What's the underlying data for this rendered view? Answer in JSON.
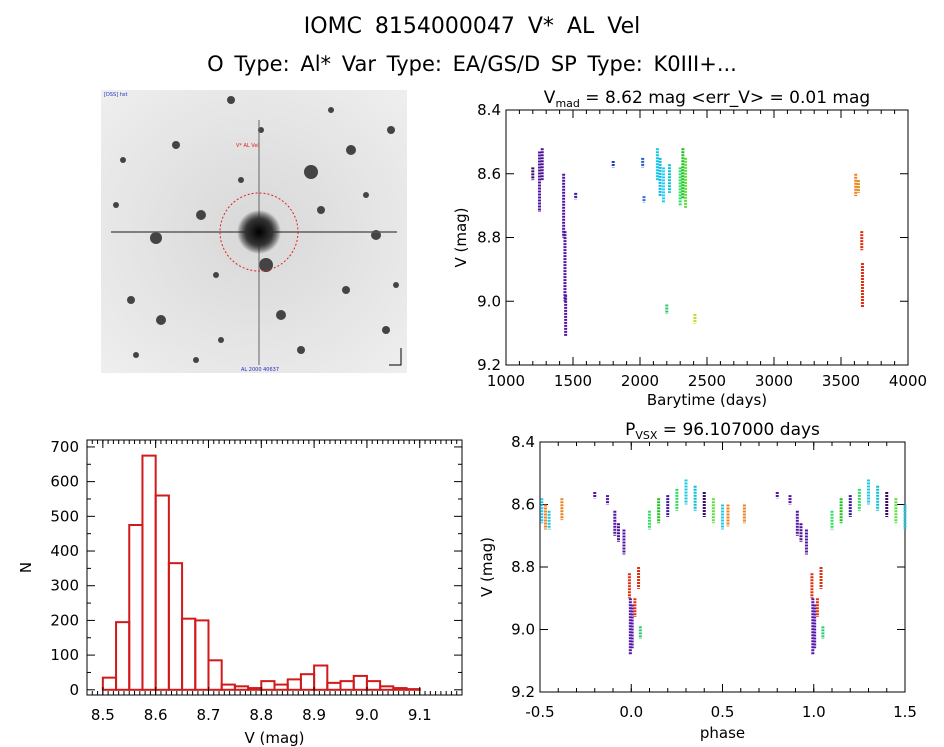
{
  "header": {
    "title_line1": "IOMC 8154000047    V* AL Vel",
    "title_line2": "O Type: Al*  Var Type: EA/GS/D  SP Type: K0III+..."
  },
  "image_panel": {
    "top_left_label": "[DSS] hst",
    "target_label": "V* AL Vel",
    "bottom_label": "AL 2000 40637"
  },
  "chart_data": [
    {
      "type": "scatter",
      "title": "V_mad = 8.62 mag <err_V> = 0.01 mag",
      "title_parts": {
        "v": "V",
        "sub": "mad",
        "rest": " = 8.62 mag <err_V> = 0.01 mag"
      },
      "xlabel": "Barytime (days)",
      "ylabel": "V (mag)",
      "xlim": [
        1000,
        4000
      ],
      "ylim": [
        9.2,
        8.4
      ],
      "x_ticks": [
        1000,
        1500,
        2000,
        2500,
        3000,
        3500,
        4000
      ],
      "y_ticks": [
        "8.4",
        "8.6",
        "8.8",
        "9.0",
        "9.2"
      ],
      "segments": [
        {
          "x": 1200,
          "y_from": 8.58,
          "y_to": 8.62,
          "color": "#3a0c63"
        },
        {
          "x": 1250,
          "y_from": 8.53,
          "y_to": 8.72,
          "color": "#5010a0"
        },
        {
          "x": 1270,
          "y_from": 8.52,
          "y_to": 8.62,
          "color": "#4a1090"
        },
        {
          "x": 1430,
          "y_from": 8.6,
          "y_to": 8.8,
          "color": "#5514a8"
        },
        {
          "x": 1440,
          "y_from": 8.78,
          "y_to": 9.0,
          "color": "#5514a8"
        },
        {
          "x": 1445,
          "y_from": 8.98,
          "y_to": 9.11,
          "color": "#5514a8"
        },
        {
          "x": 1520,
          "y_from": 8.66,
          "y_to": 8.68,
          "color": "#3a1a9f"
        },
        {
          "x": 1800,
          "y_from": 8.56,
          "y_to": 8.58,
          "color": "#2040c0"
        },
        {
          "x": 2020,
          "y_from": 8.55,
          "y_to": 8.58,
          "color": "#2060d0"
        },
        {
          "x": 2030,
          "y_from": 8.67,
          "y_to": 8.69,
          "color": "#3070e0"
        },
        {
          "x": 2130,
          "y_from": 8.52,
          "y_to": 8.62,
          "color": "#10c8e0"
        },
        {
          "x": 2150,
          "y_from": 8.55,
          "y_to": 8.67,
          "color": "#10b8f0"
        },
        {
          "x": 2175,
          "y_from": 8.58,
          "y_to": 8.69,
          "color": "#20d0f0"
        },
        {
          "x": 2200,
          "y_from": 9.01,
          "y_to": 9.04,
          "color": "#30c870"
        },
        {
          "x": 2220,
          "y_from": 8.57,
          "y_to": 8.66,
          "color": "#10c0d0"
        },
        {
          "x": 2300,
          "y_from": 8.58,
          "y_to": 8.7,
          "color": "#30e060"
        },
        {
          "x": 2320,
          "y_from": 8.52,
          "y_to": 8.68,
          "color": "#20c020"
        },
        {
          "x": 2340,
          "y_from": 8.55,
          "y_to": 8.71,
          "color": "#60e040"
        },
        {
          "x": 2410,
          "y_from": 9.04,
          "y_to": 9.07,
          "color": "#c0e020"
        },
        {
          "x": 3610,
          "y_from": 8.6,
          "y_to": 8.67,
          "color": "#f08020"
        },
        {
          "x": 3630,
          "y_from": 8.62,
          "y_to": 8.66,
          "color": "#e09010"
        },
        {
          "x": 3655,
          "y_from": 8.78,
          "y_to": 8.84,
          "color": "#e03010"
        },
        {
          "x": 3660,
          "y_from": 8.88,
          "y_to": 9.02,
          "color": "#e03010"
        }
      ]
    },
    {
      "type": "bar",
      "title": "",
      "xlabel": "V (mag)",
      "ylabel": "N",
      "xlim": [
        8.47,
        9.18
      ],
      "ylim": [
        -15,
        720
      ],
      "x_ticks": [
        "8.5",
        "8.6",
        "8.7",
        "8.8",
        "8.9",
        "9.0",
        "9.1"
      ],
      "y_ticks": [
        "0",
        "100",
        "200",
        "300",
        "400",
        "500",
        "600",
        "700"
      ],
      "bin_width": 0.025,
      "bin_start": 8.5,
      "values": [
        35,
        195,
        475,
        675,
        560,
        365,
        205,
        200,
        85,
        15,
        10,
        5,
        25,
        15,
        30,
        45,
        70,
        20,
        25,
        40,
        25,
        10,
        5,
        2
      ]
    },
    {
      "type": "scatter",
      "title": "P_VSX = 96.107000 days",
      "title_parts": {
        "v": "P",
        "sub": "VSX",
        "rest": " = 96.107000 days"
      },
      "xlabel": "phase",
      "ylabel": "V (mag)",
      "xlim": [
        -0.5,
        1.5
      ],
      "ylim": [
        9.2,
        8.4
      ],
      "x_ticks": [
        "-0.5",
        "0.0",
        "0.5",
        "1.0",
        "1.5"
      ],
      "y_ticks": [
        "8.4",
        "8.6",
        "8.8",
        "9.0",
        "9.2"
      ],
      "segments": [
        {
          "x": -0.49,
          "y_from": 8.58,
          "y_to": 8.66,
          "color": "#30c0f0"
        },
        {
          "x": -0.47,
          "y_from": 8.6,
          "y_to": 8.68,
          "color": "#f08020"
        },
        {
          "x": -0.45,
          "y_from": 8.62,
          "y_to": 8.68,
          "color": "#20c8e0"
        },
        {
          "x": -0.38,
          "y_from": 8.58,
          "y_to": 8.65,
          "color": "#f08020"
        },
        {
          "x": -0.2,
          "y_from": 8.56,
          "y_to": 8.58,
          "color": "#5514a8"
        },
        {
          "x": -0.13,
          "y_from": 8.57,
          "y_to": 8.6,
          "color": "#5514a8"
        },
        {
          "x": -0.09,
          "y_from": 8.62,
          "y_to": 8.7,
          "color": "#5514a8"
        },
        {
          "x": -0.07,
          "y_from": 8.66,
          "y_to": 8.72,
          "color": "#4a1090"
        },
        {
          "x": -0.04,
          "y_from": 8.68,
          "y_to": 8.76,
          "color": "#5514a8"
        },
        {
          "x": -0.01,
          "y_from": 8.82,
          "y_to": 8.9,
          "color": "#e03010"
        },
        {
          "x": -0.005,
          "y_from": 8.9,
          "y_to": 9.08,
          "color": "#5514a8"
        },
        {
          "x": 0.005,
          "y_from": 8.92,
          "y_to": 9.06,
          "color": "#5514a8"
        },
        {
          "x": 0.02,
          "y_from": 8.9,
          "y_to": 8.96,
          "color": "#e03010"
        },
        {
          "x": 0.04,
          "y_from": 8.8,
          "y_to": 8.87,
          "color": "#e03010"
        },
        {
          "x": 0.05,
          "y_from": 8.99,
          "y_to": 9.03,
          "color": "#30c870"
        },
        {
          "x": 0.1,
          "y_from": 8.62,
          "y_to": 8.68,
          "color": "#30e060"
        },
        {
          "x": 0.15,
          "y_from": 8.58,
          "y_to": 8.66,
          "color": "#20c020"
        },
        {
          "x": 0.2,
          "y_from": 8.57,
          "y_to": 8.64,
          "color": "#3a1a9f"
        },
        {
          "x": 0.25,
          "y_from": 8.55,
          "y_to": 8.62,
          "color": "#30e060"
        },
        {
          "x": 0.3,
          "y_from": 8.52,
          "y_to": 8.6,
          "color": "#20c8e0"
        },
        {
          "x": 0.35,
          "y_from": 8.54,
          "y_to": 8.62,
          "color": "#10c0d0"
        },
        {
          "x": 0.4,
          "y_from": 8.56,
          "y_to": 8.64,
          "color": "#3a0c63"
        },
        {
          "x": 0.45,
          "y_from": 8.58,
          "y_to": 8.66,
          "color": "#60e040"
        },
        {
          "x": 0.5,
          "y_from": 8.6,
          "y_to": 8.68,
          "color": "#20c8e0"
        },
        {
          "x": 0.53,
          "y_from": 8.6,
          "y_to": 8.67,
          "color": "#f08020"
        },
        {
          "x": 0.62,
          "y_from": 8.6,
          "y_to": 8.66,
          "color": "#f08020"
        },
        {
          "x": 0.8,
          "y_from": 8.56,
          "y_to": 8.58,
          "color": "#5514a8"
        },
        {
          "x": 0.87,
          "y_from": 8.57,
          "y_to": 8.6,
          "color": "#5514a8"
        },
        {
          "x": 0.91,
          "y_from": 8.62,
          "y_to": 8.7,
          "color": "#5514a8"
        },
        {
          "x": 0.93,
          "y_from": 8.66,
          "y_to": 8.72,
          "color": "#4a1090"
        },
        {
          "x": 0.96,
          "y_from": 8.68,
          "y_to": 8.76,
          "color": "#5514a8"
        },
        {
          "x": 0.99,
          "y_from": 8.82,
          "y_to": 8.9,
          "color": "#e03010"
        },
        {
          "x": 0.995,
          "y_from": 8.9,
          "y_to": 9.08,
          "color": "#5514a8"
        },
        {
          "x": 1.005,
          "y_from": 8.92,
          "y_to": 9.06,
          "color": "#5514a8"
        },
        {
          "x": 1.02,
          "y_from": 8.9,
          "y_to": 8.96,
          "color": "#e03010"
        },
        {
          "x": 1.04,
          "y_from": 8.8,
          "y_to": 8.87,
          "color": "#e03010"
        },
        {
          "x": 1.05,
          "y_from": 8.99,
          "y_to": 9.03,
          "color": "#30c870"
        },
        {
          "x": 1.1,
          "y_from": 8.62,
          "y_to": 8.68,
          "color": "#30e060"
        },
        {
          "x": 1.15,
          "y_from": 8.58,
          "y_to": 8.66,
          "color": "#20c020"
        },
        {
          "x": 1.2,
          "y_from": 8.57,
          "y_to": 8.64,
          "color": "#3a1a9f"
        },
        {
          "x": 1.25,
          "y_from": 8.55,
          "y_to": 8.62,
          "color": "#30e060"
        },
        {
          "x": 1.3,
          "y_from": 8.52,
          "y_to": 8.6,
          "color": "#20c8e0"
        },
        {
          "x": 1.35,
          "y_from": 8.54,
          "y_to": 8.62,
          "color": "#10c0d0"
        },
        {
          "x": 1.4,
          "y_from": 8.56,
          "y_to": 8.64,
          "color": "#3a0c63"
        },
        {
          "x": 1.45,
          "y_from": 8.58,
          "y_to": 8.66,
          "color": "#60e040"
        },
        {
          "x": 1.5,
          "y_from": 8.6,
          "y_to": 8.68,
          "color": "#20c8e0"
        }
      ]
    }
  ]
}
